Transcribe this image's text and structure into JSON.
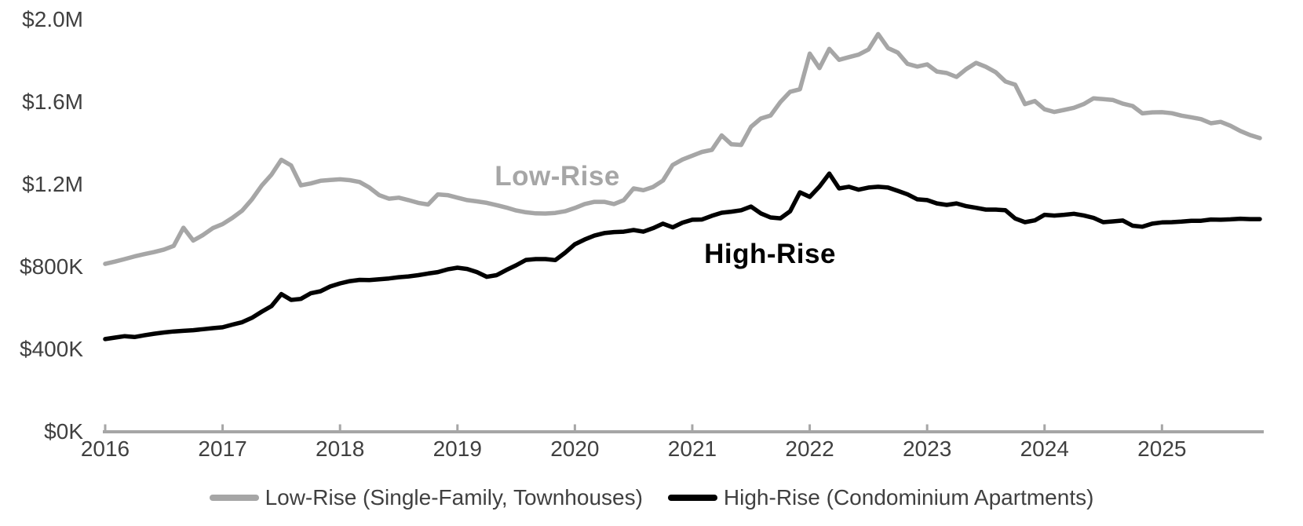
{
  "page": {
    "background": "#ffffff"
  },
  "chart_data": {
    "type": "line",
    "title": "",
    "xlabel": "",
    "ylabel": "",
    "x_unit": "month",
    "x_period": "Monthly, Jan 2016 - Nov 2025",
    "x_tick_labels": [
      "2016",
      "2017",
      "2018",
      "2019",
      "2020",
      "2021",
      "2022",
      "2023",
      "2024",
      "2025"
    ],
    "y_ticks": [
      {
        "label": "$0K",
        "value": 0
      },
      {
        "label": "$400K",
        "value": 400
      },
      {
        "label": "$800K",
        "value": 800
      },
      {
        "label": "$1.2M",
        "value": 1200
      },
      {
        "label": "$1.6M",
        "value": 1600
      },
      {
        "label": "$2.0M",
        "value": 2000
      }
    ],
    "ylim": [
      0,
      2000
    ],
    "values_unit": "thousand dollars",
    "grid": "off",
    "legend_position": "bottom",
    "axis_color": "#a6a6a6",
    "tick_label_color": "#404040",
    "series": [
      {
        "name": "Low-Rise (Single-Family, Townhouses)",
        "inline_label": "Low-Rise",
        "color": "#a6a6a6",
        "values": [
          815,
          826,
          838,
          851,
          862,
          872,
          884,
          902,
          990,
          928,
          955,
          988,
          1008,
          1038,
          1073,
          1128,
          1195,
          1248,
          1320,
          1292,
          1196,
          1205,
          1218,
          1222,
          1225,
          1221,
          1212,
          1185,
          1148,
          1131,
          1136,
          1124,
          1111,
          1103,
          1152,
          1148,
          1136,
          1124,
          1118,
          1111,
          1100,
          1088,
          1074,
          1065,
          1060,
          1059,
          1062,
          1070,
          1086,
          1105,
          1116,
          1116,
          1105,
          1124,
          1181,
          1172,
          1188,
          1219,
          1295,
          1321,
          1340,
          1358,
          1368,
          1438,
          1395,
          1392,
          1480,
          1520,
          1535,
          1600,
          1650,
          1662,
          1835,
          1765,
          1858,
          1805,
          1818,
          1830,
          1855,
          1930,
          1862,
          1840,
          1785,
          1772,
          1783,
          1748,
          1741,
          1722,
          1760,
          1790,
          1771,
          1745,
          1700,
          1684,
          1590,
          1605,
          1565,
          1552,
          1562,
          1572,
          1590,
          1618,
          1614,
          1610,
          1592,
          1581,
          1545,
          1550,
          1551,
          1546,
          1534,
          1526,
          1517,
          1497,
          1504,
          1485,
          1460,
          1440,
          1425
        ]
      },
      {
        "name": "High-Rise (Condominium Apartments)",
        "inline_label": "High-Rise",
        "color": "#000000",
        "values": [
          450,
          457,
          464,
          460,
          468,
          476,
          482,
          487,
          490,
          493,
          498,
          503,
          507,
          520,
          532,
          553,
          583,
          610,
          668,
          640,
          645,
          672,
          682,
          705,
          720,
          731,
          737,
          736,
          740,
          744,
          750,
          754,
          760,
          768,
          775,
          788,
          796,
          790,
          775,
          752,
          760,
          785,
          808,
          834,
          838,
          838,
          833,
          869,
          910,
          933,
          952,
          964,
          969,
          971,
          979,
          971,
          988,
          1010,
          992,
          1015,
          1029,
          1030,
          1048,
          1063,
          1068,
          1075,
          1093,
          1060,
          1040,
          1036,
          1070,
          1162,
          1140,
          1190,
          1253,
          1181,
          1189,
          1175,
          1185,
          1189,
          1185,
          1169,
          1152,
          1128,
          1124,
          1108,
          1101,
          1108,
          1095,
          1087,
          1078,
          1078,
          1075,
          1035,
          1017,
          1026,
          1053,
          1049,
          1053,
          1058,
          1050,
          1038,
          1017,
          1021,
          1025,
          1000,
          995,
          1010,
          1016,
          1017,
          1020,
          1024,
          1024,
          1030,
          1029,
          1031,
          1034,
          1032,
          1032
        ]
      }
    ]
  }
}
